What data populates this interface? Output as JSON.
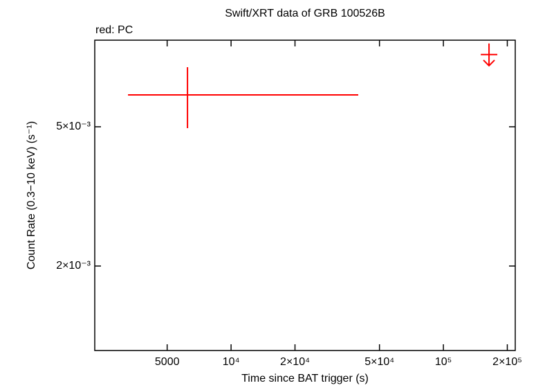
{
  "chart_data": {
    "type": "errorbar",
    "title": "Swift/XRT data of GRB 100526B",
    "subtitle": "red: PC",
    "x_label": "Time since BAT trigger (s)",
    "y_label": "Count Rate (0.3−10 keV) (s⁻¹)",
    "xscale": "log",
    "yscale": "log",
    "xlim": [
      2280,
      218000
    ],
    "ylim": [
      0.001147,
      0.00884
    ],
    "xticks": [
      5000,
      {
        "value": 10000,
        "label": "10⁴"
      },
      {
        "value": 20000,
        "label": "2×10⁴"
      },
      {
        "value": 50000,
        "label": "5×10⁴"
      },
      {
        "value": 100000,
        "label": "10⁵"
      },
      {
        "value": 200000,
        "label": "2×10⁵"
      }
    ],
    "yticks": [
      {
        "value": 0.002,
        "label": "2×10⁻³"
      },
      {
        "value": 0.005,
        "label": "5×10⁻³"
      }
    ],
    "series": [
      {
        "color": "#ff0000",
        "x": [
          6233
        ],
        "x_low": [
          3270
        ],
        "x_high": [
          39720
        ],
        "values": [
          0.006166
        ],
        "y_low": [
          0.004955
        ],
        "y_high": [
          0.0074
        ]
      }
    ],
    "upper_limits": {
      "color": "#ff0000",
      "x": [
        164000
      ],
      "x_low": [
        150000
      ],
      "x_high": [
        179500
      ],
      "values": [
        0.00804
      ]
    }
  }
}
